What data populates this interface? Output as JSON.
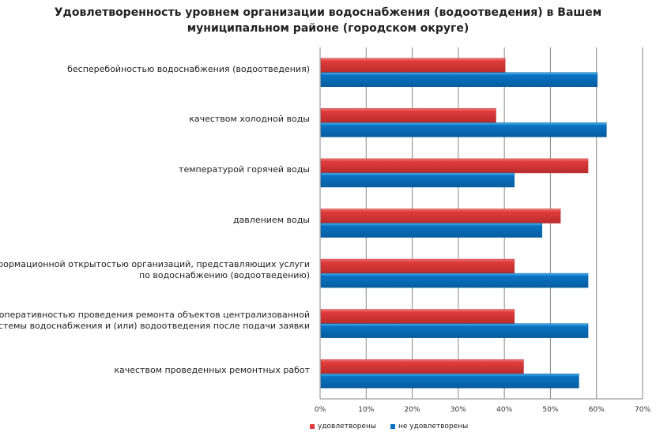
{
  "chart_data": {
    "type": "bar",
    "orientation": "horizontal",
    "title": "Удовлетворенность уровнем организации водоснабжения (водоотведения) в Вашем муниципальном районе (городском округе)",
    "title_lines": [
      "Удовлетворенность уровнем организации водоснабжения (водоотведения) в Вашем",
      "муниципальном районе (городском округе)"
    ],
    "categories": [
      [
        "бесперебойностью водоснабжения (водоотведения)"
      ],
      [
        "качеством холодной воды"
      ],
      [
        "температурой горячей воды"
      ],
      [
        "давлением воды"
      ],
      [
        "информационной открытостью организаций, представляющих услуги",
        "по водоснабжению (водоотведению)"
      ],
      [
        "оперативностью проведения  ремонта объектов централизованной",
        "системы водоснабжения и (или) водоотведения  после подачи заявки"
      ],
      [
        "качеством проведенных ремонтных работ"
      ]
    ],
    "series": [
      {
        "name": "удовлетворены",
        "color": "#e03c3c",
        "values": [
          40,
          38,
          58,
          52,
          42,
          42,
          44
        ]
      },
      {
        "name": "не удовлетворены",
        "color": "#0a72c2",
        "values": [
          60,
          62,
          42,
          48,
          58,
          58,
          56
        ]
      }
    ],
    "xlim": [
      0,
      70
    ],
    "xticks": [
      "0%",
      "10%",
      "20%",
      "30%",
      "40%",
      "50%",
      "60%",
      "70%"
    ],
    "grid": true,
    "legend": "bottom"
  }
}
